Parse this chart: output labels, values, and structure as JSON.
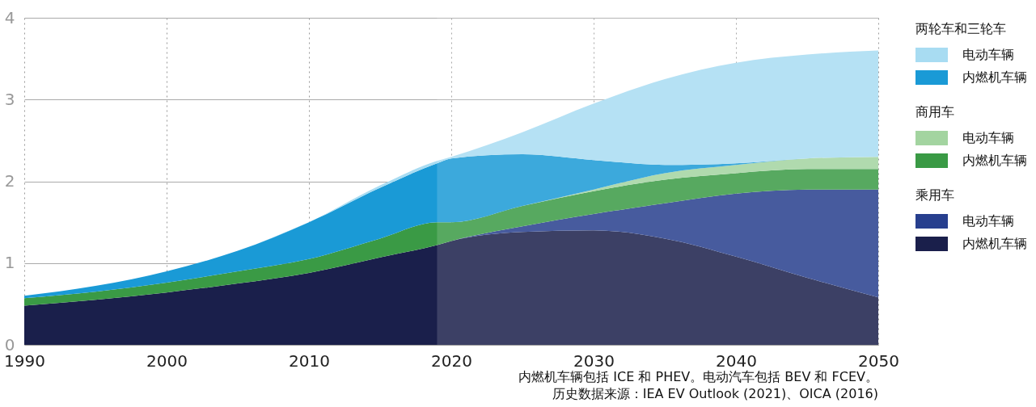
{
  "chart_data": {
    "type": "area",
    "stacked": true,
    "x": [
      1990,
      1995,
      2000,
      2005,
      2010,
      2015,
      2019,
      2020,
      2025,
      2030,
      2035,
      2040,
      2045,
      2050
    ],
    "series": [
      {
        "name": "内燃机车辆",
        "color": "#1a1f4b",
        "values": [
          0.48,
          0.55,
          0.64,
          0.75,
          0.88,
          1.07,
          1.22,
          1.27,
          1.38,
          1.4,
          1.3,
          1.08,
          0.82,
          0.58
        ]
      },
      {
        "name": "电动车辆",
        "color": "#273f8e",
        "values": [
          0,
          0,
          0,
          0,
          0,
          0,
          0,
          0,
          0.07,
          0.2,
          0.43,
          0.77,
          1.08,
          1.32
        ]
      },
      {
        "name": "内燃机车辆",
        "color": "#3a9a45",
        "values": [
          0.09,
          0.1,
          0.12,
          0.15,
          0.17,
          0.23,
          0.28,
          0.23,
          0.25,
          0.28,
          0.29,
          0.25,
          0.25,
          0.25
        ]
      },
      {
        "name": "电动车辆",
        "color": "#a3d4a0",
        "values": [
          0,
          0,
          0,
          0,
          0,
          0,
          0,
          0,
          0,
          0.02,
          0.08,
          0.1,
          0.13,
          0.15
        ]
      },
      {
        "name": "内燃机车辆",
        "color": "#1a9ad6",
        "values": [
          0.03,
          0.07,
          0.14,
          0.25,
          0.45,
          0.62,
          0.72,
          0.78,
          0.63,
          0.36,
          0.1,
          0.02,
          0,
          0
        ]
      },
      {
        "name": "电动车辆",
        "color": "#a8dcf2",
        "values": [
          0,
          0,
          0,
          0,
          0,
          0.03,
          0.03,
          0.02,
          0.27,
          0.69,
          1.05,
          1.23,
          1.27,
          1.3
        ]
      }
    ],
    "xlim": [
      1990,
      2050
    ],
    "xticks": [
      1990,
      2000,
      2010,
      2020,
      2030,
      2040,
      2050
    ],
    "ylim": [
      0,
      4
    ],
    "yticks": [
      0,
      1,
      2,
      3,
      4
    ],
    "bands": [
      {
        "axis": "x",
        "from": 2019,
        "to": 2050,
        "color": "#ffffff"
      }
    ],
    "grid": true,
    "legend": "right",
    "annotations": [
      "乘用车",
      "商用车",
      "两轮车和三轮车",
      "内燃机车辆包括 ICE 和 PHEV。电动汽车包括 BEV 和 FCEV。",
      "历史数据来源：IEA EV Outlook (2021)、OICA (2016)"
    ]
  }
}
